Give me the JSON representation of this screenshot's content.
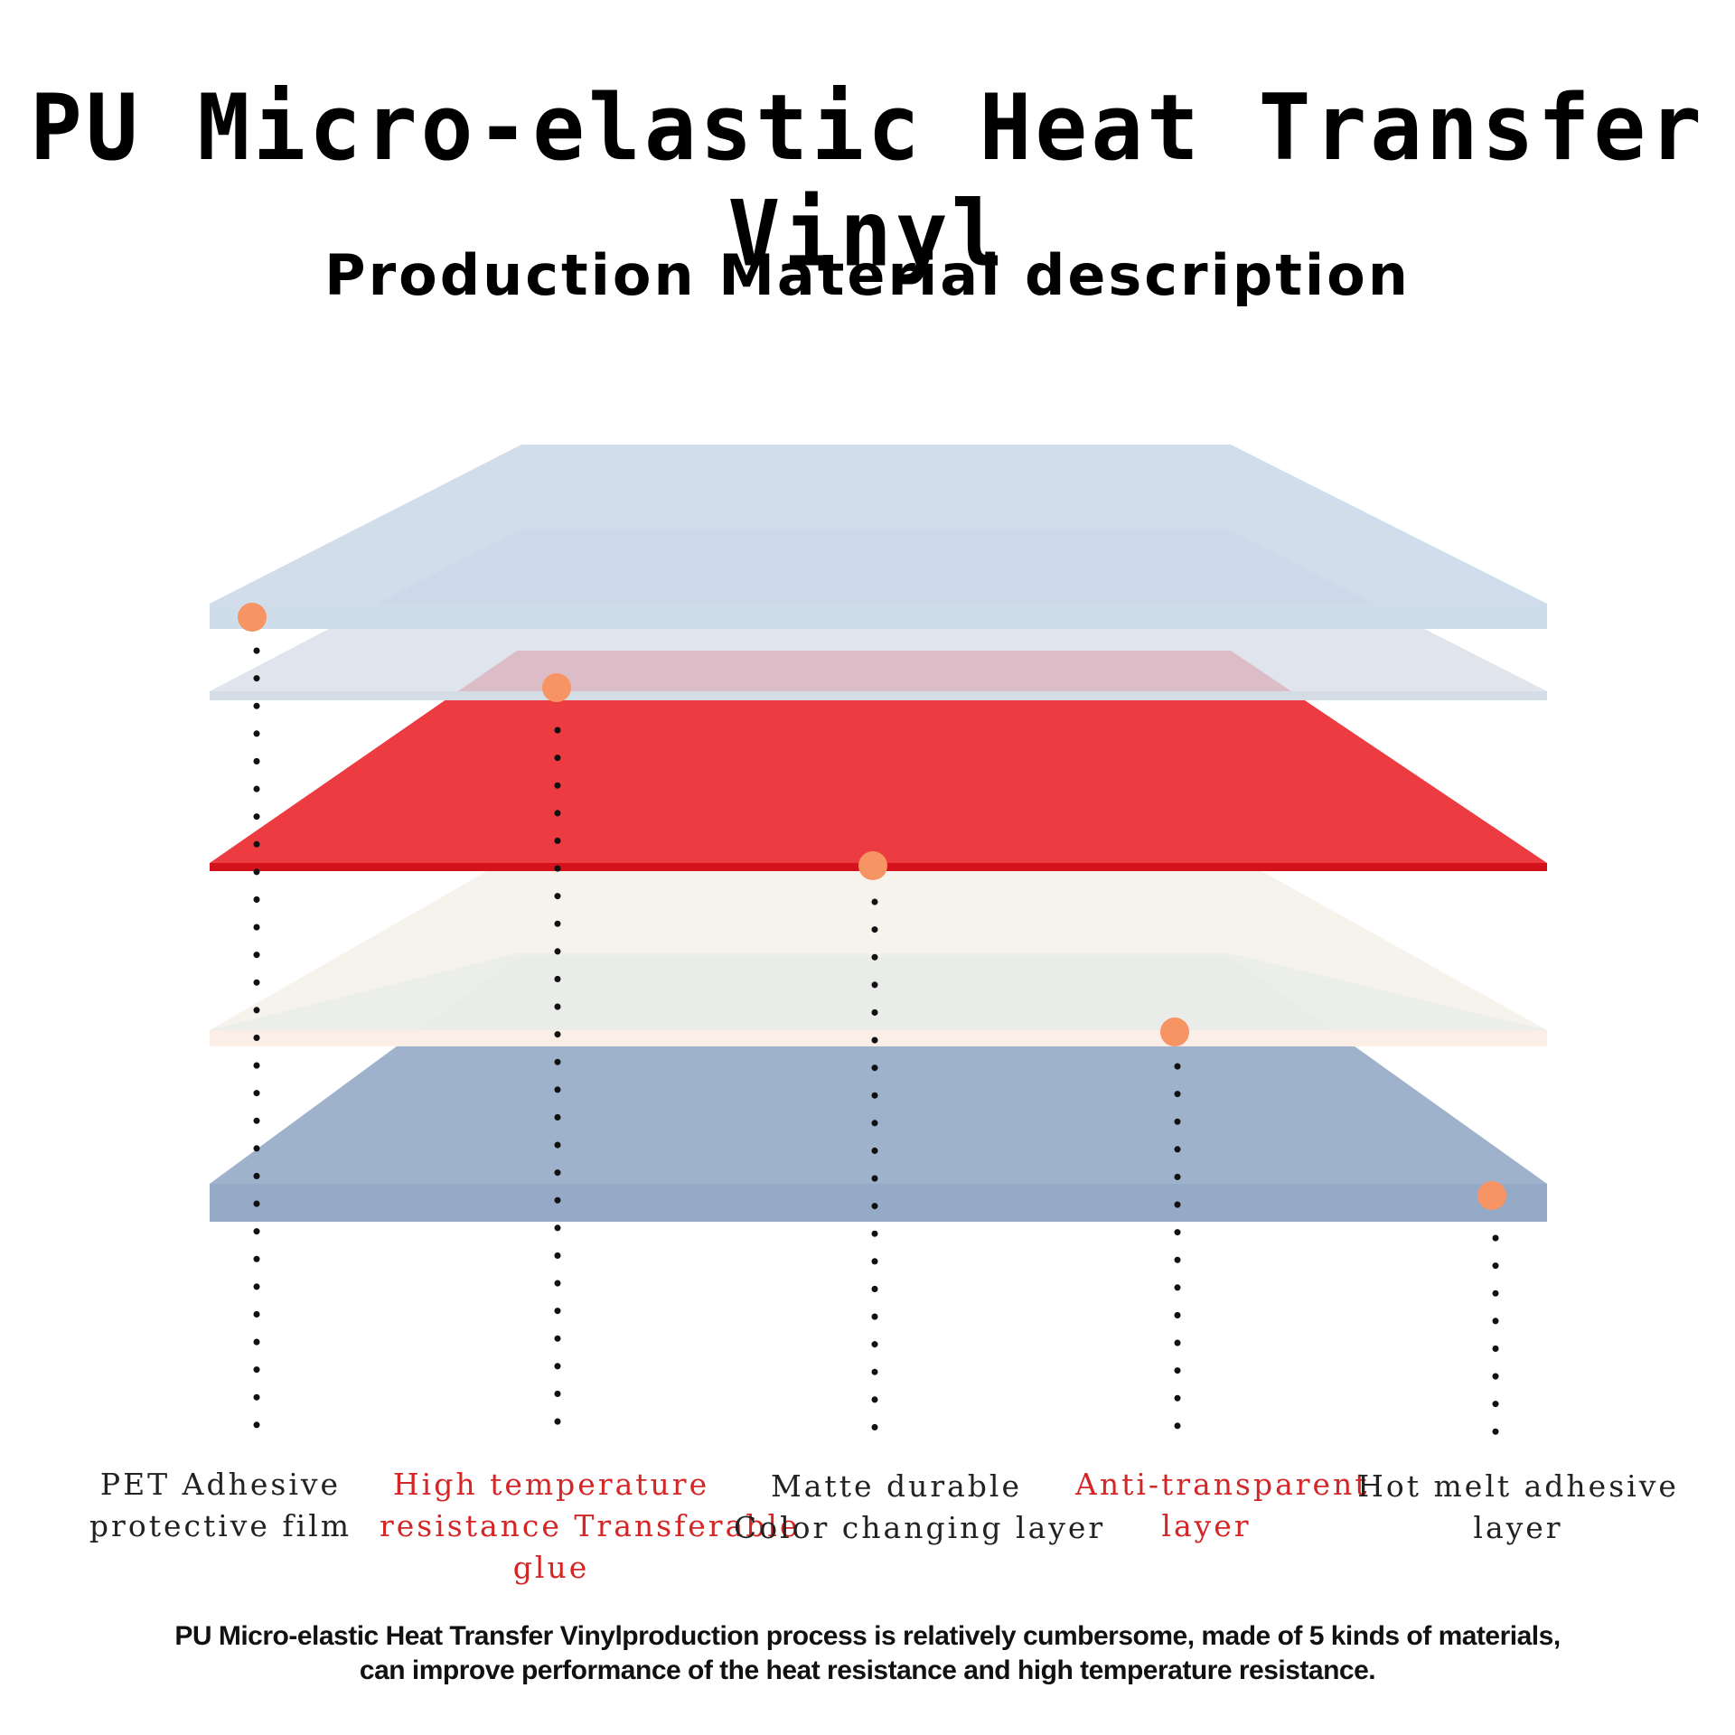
{
  "title": "PU Micro-elastic Heat Transfer Vinyl",
  "subtitle": "Production Material description",
  "labels": [
    {
      "lines": [
        "PET Adhesive",
        "protective film"
      ],
      "color": "#222222"
    },
    {
      "lines": [
        "High temperature",
        "resistance Transferable",
        "glue"
      ],
      "color": "#d42626"
    },
    {
      "lines": [
        "Matte durable",
        "Color changing layer"
      ],
      "color": "#222222"
    },
    {
      "lines": [
        "Anti-transparent",
        "layer"
      ],
      "color": "#d42626"
    },
    {
      "lines": [
        "Hot melt adhesive",
        "layer"
      ],
      "color": "#222222"
    }
  ],
  "footnote": {
    "line1": "PU Micro-elastic Heat Transfer Vinylproduction process is relatively cumbersome, made of 5 kinds of materials,",
    "line2": "can improve performance of the heat resistance and high temperature resistance."
  },
  "colors": {
    "marker": "#f79464",
    "pet_film": "#c9d7e6",
    "glue": "#d7dde6",
    "color_layer": "#ec3b41",
    "color_edge": "#d3121b",
    "anti_transparent": "#fbf7f0",
    "hot_melt": "#95aac6"
  }
}
